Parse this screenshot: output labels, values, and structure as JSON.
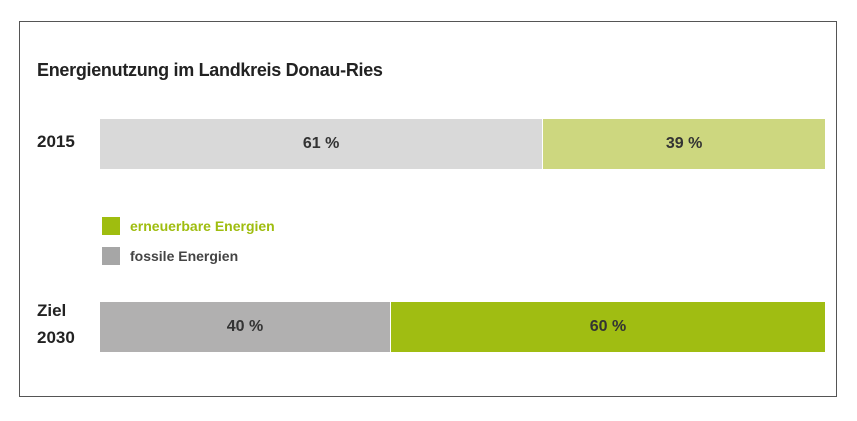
{
  "chart_data": {
    "type": "stacked-bar-horizontal",
    "title": "Energienutzung im Landkreis Donau-Ries",
    "categories": [
      "2015",
      "Ziel 2030"
    ],
    "xlim": [
      0,
      100
    ],
    "series": [
      {
        "name": "fossile Energien",
        "color": "#a6a6a6",
        "colors": [
          "#d9d9d9",
          "#b1b0b0"
        ],
        "values": [
          61,
          40
        ],
        "value_labels": [
          "61 %",
          "40 %"
        ]
      },
      {
        "name": "erneuerbare Energien",
        "color": "#9fbd0f",
        "colors": [
          "#cdd77f",
          "#a0bd12"
        ],
        "values": [
          39,
          60
        ],
        "value_labels": [
          "39 %",
          "60 %"
        ]
      }
    ]
  }
}
